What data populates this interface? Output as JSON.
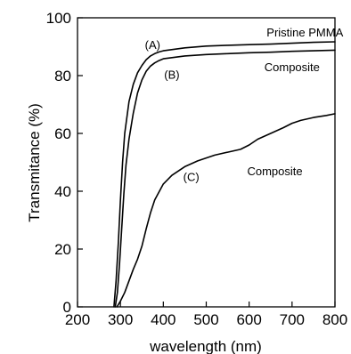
{
  "chart_data": {
    "type": "line",
    "title": "",
    "xlabel": "wavelength (nm)",
    "ylabel": "Transmitance (%)",
    "xlim": [
      200,
      800
    ],
    "ylim": [
      0,
      100
    ],
    "xticks": [
      200,
      300,
      400,
      500,
      600,
      700,
      800
    ],
    "yticks": [
      0,
      20,
      40,
      60,
      80,
      100
    ],
    "grid": false,
    "legend": "none",
    "series": [
      {
        "name": "(A)",
        "x": [
          285,
          290,
          295,
          300,
          305,
          310,
          320,
          330,
          340,
          350,
          360,
          370,
          380,
          390,
          400,
          450,
          500,
          550,
          600,
          650,
          700,
          750,
          800
        ],
        "y": [
          0,
          9,
          22,
          37,
          50,
          60,
          71,
          77,
          81,
          83.5,
          85.5,
          86.8,
          87.6,
          88.2,
          88.6,
          89.6,
          90.2,
          90.5,
          90.7,
          90.9,
          91.2,
          91.5,
          91.7
        ]
      },
      {
        "name": "(B)",
        "x": [
          288,
          293,
          298,
          303,
          308,
          313,
          320,
          330,
          340,
          350,
          360,
          370,
          380,
          390,
          400,
          450,
          500,
          550,
          600,
          650,
          700,
          750,
          800
        ],
        "y": [
          0,
          5,
          15,
          27,
          39,
          49,
          58,
          67,
          74,
          78.5,
          81.5,
          83.3,
          84.4,
          85.2,
          85.8,
          86.8,
          87.3,
          87.6,
          87.9,
          88.1,
          88.4,
          88.6,
          88.8
        ]
      },
      {
        "name": "(C)",
        "x": [
          292,
          300,
          310,
          320,
          330,
          340,
          350,
          360,
          370,
          380,
          400,
          420,
          450,
          480,
          500,
          520,
          550,
          580,
          600,
          620,
          650,
          680,
          700,
          720,
          750,
          780,
          800
        ],
        "y": [
          0,
          2,
          5,
          9,
          13,
          16.5,
          21,
          27,
          32.5,
          37,
          42.5,
          45.5,
          48.5,
          50.5,
          51.5,
          52.5,
          53.5,
          54.5,
          56,
          58,
          60,
          62,
          63.5,
          64.5,
          65.5,
          66.2,
          66.8
        ]
      }
    ],
    "annotations": [
      {
        "text": "Pristine PMMA",
        "x": 730,
        "y": 93.5
      },
      {
        "text": "(A)",
        "x": 375,
        "y": 89.2
      },
      {
        "text": "(B)",
        "x": 420,
        "y": 79.0
      },
      {
        "text": "Composite",
        "x": 700,
        "y": 81.5
      },
      {
        "text": "(C)",
        "x": 465,
        "y": 43.5
      },
      {
        "text": "Composite",
        "x": 660,
        "y": 45.5
      }
    ]
  }
}
